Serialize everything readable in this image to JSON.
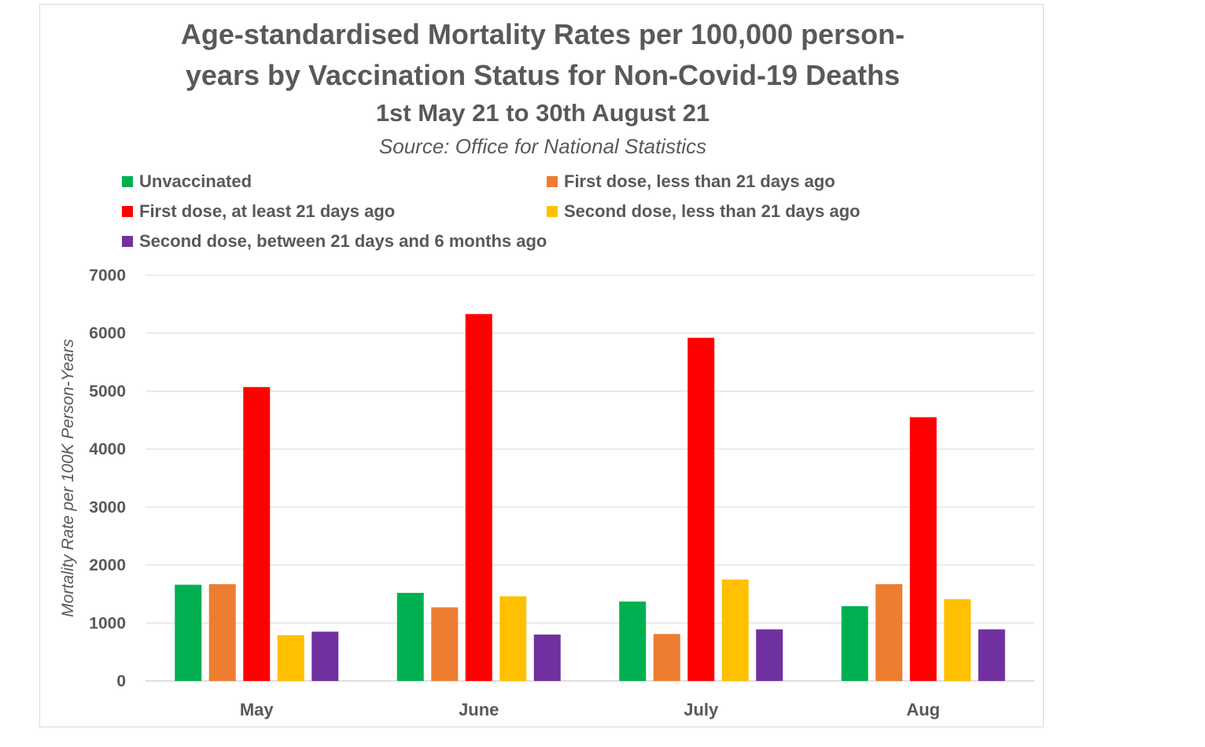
{
  "chart_data": {
    "type": "bar",
    "title": "Age-standardised Mortality Rates per 100,000 person-years by Vaccination Status for Non-Covid-19 Deaths",
    "title_line1": "Age-standardised Mortality Rates per 100,000 person-",
    "title_line2": "years by Vaccination Status for Non-Covid-19 Deaths",
    "subtitle": "1st May 21 to 30th August 21",
    "source": "Source: Office for National Statistics",
    "xlabel": "",
    "ylabel": "Mortality Rate per 100K Person-Years",
    "ylim": [
      0,
      7000
    ],
    "yticks": [
      0,
      1000,
      2000,
      3000,
      4000,
      5000,
      6000,
      7000
    ],
    "grid": true,
    "legend_position": "top",
    "categories": [
      "May",
      "June",
      "July",
      "Aug"
    ],
    "series": [
      {
        "name": "Unvaccinated",
        "color": "#00b050",
        "values": [
          1660,
          1520,
          1370,
          1290
        ]
      },
      {
        "name": "First dose, less than 21 days ago",
        "color": "#ed7d31",
        "values": [
          1670,
          1270,
          810,
          1670
        ]
      },
      {
        "name": "First dose, at least 21 days ago",
        "color": "#ff0000",
        "values": [
          5070,
          6330,
          5920,
          4550
        ]
      },
      {
        "name": "Second dose, less than 21 days ago",
        "color": "#ffc000",
        "values": [
          790,
          1460,
          1750,
          1410
        ]
      },
      {
        "name": "Second dose, between 21 days and 6 months ago",
        "color": "#7030a0",
        "values": [
          850,
          800,
          890,
          890
        ]
      }
    ]
  }
}
